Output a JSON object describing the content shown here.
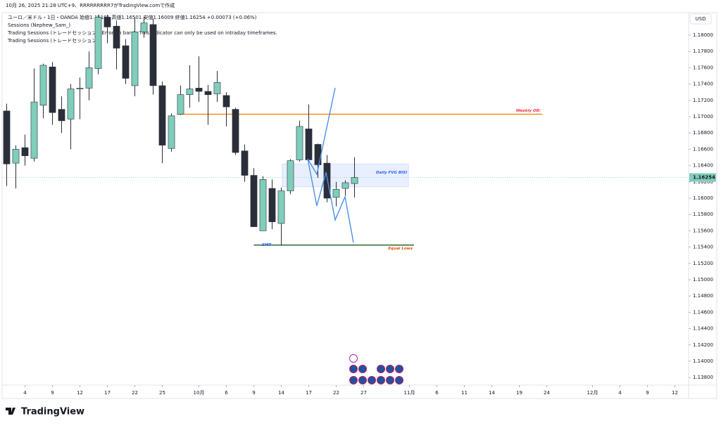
{
  "header": {
    "created": "10月 26, 2025 21:28 UTC+9、RRRRRRRRR7がTradingView.comで作成",
    "symbol_line": "ユーロ／米ドル・1日・OANDA  始値1.16181  高値1.16501  安値1.16009  終値1.16254  +0.00073 (+0.06%)",
    "indicators": [
      "Sessions (Nephew_Sam_)",
      "Trading Sessions (トレードセッション): Error on bar 0: This indicator can only be used on intraday timeframes.",
      "Trading Sessions (トレードセッション)"
    ]
  },
  "chart_data": {
    "type": "candlestick",
    "currency": "USD",
    "up_color": "#7fcdbb",
    "down_color": "#2a2e39",
    "open": [
      1.1707,
      1.1643,
      1.1662,
      1.1649,
      1.1714,
      1.1761,
      1.1709,
      1.1697,
      1.1734,
      1.1735,
      1.1759,
      1.1822,
      1.1811,
      1.1787,
      1.1738,
      1.1804,
      1.1813,
      1.1738,
      1.1661,
      1.1703,
      1.1727,
      1.1735,
      1.1731,
      1.1728,
      1.1726,
      1.1709,
      1.1658,
      1.1628,
      1.156,
      1.1612,
      1.1569,
      1.1609,
      1.1647,
      1.1685,
      1.1666,
      1.1643,
      1.1601,
      1.1612,
      1.1618
    ],
    "high": [
      1.1716,
      1.1665,
      1.1678,
      1.1759,
      1.1765,
      1.1767,
      1.1725,
      1.174,
      1.1748,
      1.178,
      1.1825,
      1.1825,
      1.1818,
      1.1795,
      1.1822,
      1.1822,
      1.182,
      1.1743,
      1.1704,
      1.1738,
      1.1763,
      1.1774,
      1.1739,
      1.1756,
      1.173,
      1.1711,
      1.1666,
      1.1637,
      1.1627,
      1.1623,
      1.1613,
      1.1648,
      1.1695,
      1.1715,
      1.1667,
      1.1653,
      1.162,
      1.1622,
      1.16501
    ],
    "low": [
      1.1615,
      1.1612,
      1.164,
      1.1645,
      1.1698,
      1.169,
      1.168,
      1.166,
      1.1697,
      1.172,
      1.1752,
      1.179,
      1.1758,
      1.174,
      1.1725,
      1.1797,
      1.1727,
      1.1643,
      1.1657,
      1.1702,
      1.1711,
      1.1718,
      1.169,
      1.1718,
      1.1688,
      1.1653,
      1.162,
      1.1565,
      1.156,
      1.1562,
      1.1542,
      1.1605,
      1.1645,
      1.1645,
      1.1625,
      1.1595,
      1.159,
      1.1603,
      1.16009
    ],
    "close": [
      1.1642,
      1.166,
      1.1652,
      1.1718,
      1.1763,
      1.1705,
      1.1695,
      1.1734,
      1.1735,
      1.176,
      1.1822,
      1.181,
      1.1784,
      1.1747,
      1.1804,
      1.1815,
      1.1738,
      1.1665,
      1.1701,
      1.1727,
      1.1734,
      1.1731,
      1.1727,
      1.1742,
      1.1712,
      1.1656,
      1.1628,
      1.1565,
      1.1623,
      1.1571,
      1.1609,
      1.1646,
      1.1688,
      1.1647,
      1.1641,
      1.16,
      1.1611,
      1.1619,
      1.16254
    ],
    "xlim": [
      -0.5,
      74.5
    ],
    "xticks": [
      {
        "value": 2,
        "label": "4"
      },
      {
        "value": 5,
        "label": "9"
      },
      {
        "value": 8,
        "label": "12"
      },
      {
        "value": 11,
        "label": "17"
      },
      {
        "value": 14,
        "label": "22"
      },
      {
        "value": 17,
        "label": "25"
      },
      {
        "value": 21,
        "label": "10月"
      },
      {
        "value": 24,
        "label": "6"
      },
      {
        "value": 27,
        "label": "9"
      },
      {
        "value": 30,
        "label": "14"
      },
      {
        "value": 33,
        "label": "17"
      },
      {
        "value": 36,
        "label": "22"
      },
      {
        "value": 39,
        "label": "27"
      },
      {
        "value": 44,
        "label": "11月"
      },
      {
        "value": 47,
        "label": "6"
      },
      {
        "value": 50,
        "label": "11"
      },
      {
        "value": 53,
        "label": "14"
      },
      {
        "value": 56,
        "label": "19"
      },
      {
        "value": 59,
        "label": "24"
      },
      {
        "value": 64,
        "label": "12月"
      },
      {
        "value": 67,
        "label": "4"
      },
      {
        "value": 70,
        "label": "9"
      },
      {
        "value": 73,
        "label": "12"
      }
    ],
    "ylim": [
      1.1375,
      1.1825
    ],
    "yticks": [
      {
        "value": 1.138,
        "label": "1.13800"
      },
      {
        "value": 1.14,
        "label": "1.14000"
      },
      {
        "value": 1.142,
        "label": "1.14200"
      },
      {
        "value": 1.144,
        "label": "1.14400"
      },
      {
        "value": 1.146,
        "label": "1.14600"
      },
      {
        "value": 1.148,
        "label": "1.14800"
      },
      {
        "value": 1.15,
        "label": "1.15000"
      },
      {
        "value": 1.152,
        "label": "1.15200"
      },
      {
        "value": 1.154,
        "label": "1.15400"
      },
      {
        "value": 1.156,
        "label": "1.15600"
      },
      {
        "value": 1.158,
        "label": "1.15800"
      },
      {
        "value": 1.16,
        "label": "1.16000"
      },
      {
        "value": 1.162,
        "label": "1.16200"
      },
      {
        "value": 1.164,
        "label": "1.16400"
      },
      {
        "value": 1.166,
        "label": "1.16600"
      },
      {
        "value": 1.168,
        "label": "1.16800"
      },
      {
        "value": 1.17,
        "label": "1.17000"
      },
      {
        "value": 1.172,
        "label": "1.17200"
      },
      {
        "value": 1.174,
        "label": "1.17400"
      },
      {
        "value": 1.176,
        "label": "1.17600"
      },
      {
        "value": 1.178,
        "label": "1.17800"
      },
      {
        "value": 1.18,
        "label": "1.18000"
      }
    ],
    "last_price": 1.16254,
    "last_price_color": "#7fcdbb",
    "lines": [
      {
        "label": "Weekly OB:",
        "level": 1.1703,
        "x": [
          18.6,
          58.5
        ],
        "color": "#f57c00",
        "label_color": "#f23645"
      },
      {
        "label": "Equal Lows",
        "level": 1.15425,
        "x": [
          27,
          44.5
        ],
        "color": "#1b5e20",
        "label_color": "#e65100"
      }
    ],
    "zones": [
      {
        "label": "Daily FVG BISI",
        "range": [
          1.1614,
          1.1642
        ],
        "x": [
          30.1,
          43.9
        ],
        "color": "#2962ff"
      }
    ],
    "notes": [
      {
        "label": "SMT",
        "x": 28.4,
        "y": 1.15425,
        "color": "#2962ff"
      }
    ]
  },
  "footer": {
    "logo": "TradingView"
  }
}
